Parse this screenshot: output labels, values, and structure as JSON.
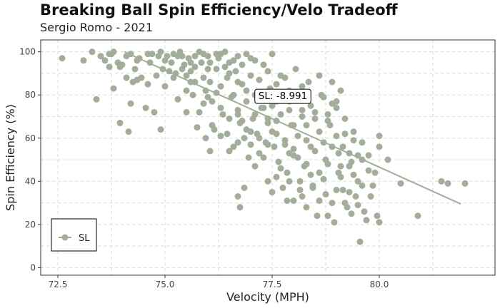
{
  "chart_data": {
    "type": "scatter",
    "title": "Breaking Ball Spin Efficiency/Velo Tradeoff",
    "subtitle": "Sergio Romo - 2021",
    "xlabel": "Velocity (MPH)",
    "ylabel": "Spin Efficiency (%)",
    "xlim": [
      72.1,
      82.7
    ],
    "ylim": [
      -3.5,
      105.5
    ],
    "x_ticks": [
      72.5,
      75.0,
      77.5,
      80.0
    ],
    "x_tick_labels": [
      "72.5",
      "75.0",
      "77.5",
      "80.0"
    ],
    "y_ticks": [
      0,
      20,
      40,
      60,
      80,
      100
    ],
    "y_tick_labels": [
      "0",
      "20",
      "40",
      "60",
      "80",
      "100"
    ],
    "grid": true,
    "legend": {
      "position": "bottom-left",
      "entries": [
        "SL"
      ]
    },
    "point_color": "#A2AE99",
    "trend_color": "#A2AE99",
    "series": [
      {
        "name": "SL",
        "trend": {
          "x": [
            74.05,
            81.9
          ],
          "y": [
            100,
            29.5
          ]
        },
        "points": [
          [
            72.6,
            97
          ],
          [
            73.1,
            96
          ],
          [
            73.3,
            100
          ],
          [
            73.4,
            78
          ],
          [
            73.5,
            98
          ],
          [
            73.6,
            96
          ],
          [
            73.7,
            93
          ],
          [
            73.75,
            99
          ],
          [
            73.8,
            100
          ],
          [
            73.8,
            83
          ],
          [
            73.9,
            95
          ],
          [
            73.95,
            93
          ],
          [
            73.95,
            67
          ],
          [
            74.1,
            98
          ],
          [
            74.1,
            88
          ],
          [
            74.15,
            63
          ],
          [
            74.2,
            76
          ],
          [
            74.25,
            86
          ],
          [
            74.35,
            87
          ],
          [
            74.35,
            96
          ],
          [
            74.45,
            88
          ],
          [
            74.55,
            74
          ],
          [
            74.6,
            99
          ],
          [
            74.65,
            95
          ],
          [
            74.7,
            99
          ],
          [
            74.75,
            72
          ],
          [
            74.9,
            100
          ],
          [
            74.9,
            64
          ],
          [
            74.95,
            92
          ],
          [
            75.0,
            84
          ],
          [
            75.05,
            98
          ],
          [
            75.15,
            95
          ],
          [
            75.25,
            90
          ],
          [
            75.3,
            78
          ],
          [
            75.35,
            100
          ],
          [
            75.4,
            98
          ],
          [
            75.45,
            94
          ],
          [
            75.5,
            89
          ],
          [
            75.5,
            72
          ],
          [
            75.55,
            97
          ],
          [
            75.6,
            91
          ],
          [
            75.6,
            86
          ],
          [
            75.65,
            80
          ],
          [
            75.7,
            98
          ],
          [
            75.75,
            65
          ],
          [
            75.8,
            100
          ],
          [
            75.85,
            95
          ],
          [
            75.9,
            76
          ],
          [
            75.95,
            82
          ],
          [
            75.95,
            60
          ],
          [
            76.0,
            98
          ],
          [
            76.05,
            95
          ],
          [
            76.05,
            86
          ],
          [
            76.05,
            54
          ],
          [
            76.1,
            77
          ],
          [
            76.15,
            64
          ],
          [
            76.2,
            92
          ],
          [
            76.25,
            97
          ],
          [
            76.3,
            84
          ],
          [
            76.35,
            71
          ],
          [
            76.4,
            100
          ],
          [
            76.45,
            88
          ],
          [
            76.45,
            62
          ],
          [
            76.5,
            95
          ],
          [
            76.55,
            79
          ],
          [
            76.6,
            56
          ],
          [
            76.65,
            91
          ],
          [
            76.7,
            98
          ],
          [
            76.7,
            73
          ],
          [
            76.75,
            67
          ],
          [
            76.8,
            85
          ],
          [
            76.85,
            60
          ],
          [
            76.9,
            99
          ],
          [
            76.9,
            77
          ],
          [
            76.95,
            51
          ],
          [
            77.0,
            89
          ],
          [
            77.05,
            69
          ],
          [
            77.1,
            96
          ],
          [
            77.1,
            80
          ],
          [
            77.1,
            47
          ],
          [
            77.15,
            62
          ],
          [
            77.2,
            53
          ],
          [
            77.25,
            74
          ],
          [
            77.3,
            94
          ],
          [
            77.35,
            58
          ],
          [
            77.4,
            67
          ],
          [
            77.4,
            40
          ],
          [
            77.45,
            83
          ],
          [
            77.5,
            99
          ],
          [
            77.5,
            63
          ],
          [
            77.55,
            56
          ],
          [
            77.6,
            77
          ],
          [
            77.65,
            49
          ],
          [
            77.7,
            89
          ],
          [
            77.7,
            71
          ],
          [
            77.75,
            37
          ],
          [
            77.8,
            59
          ],
          [
            77.85,
            44
          ],
          [
            77.9,
            82
          ],
          [
            77.95,
            66
          ],
          [
            78.0,
            52
          ],
          [
            78.0,
            31
          ],
          [
            78.05,
            92
          ],
          [
            78.1,
            61
          ],
          [
            78.15,
            40
          ],
          [
            78.2,
            73
          ],
          [
            78.25,
            47
          ],
          [
            78.3,
            28
          ],
          [
            78.35,
            86
          ],
          [
            78.4,
            56
          ],
          [
            78.45,
            38
          ],
          [
            78.5,
            69
          ],
          [
            78.55,
            24
          ],
          [
            78.6,
            44
          ],
          [
            78.65,
            80
          ],
          [
            78.7,
            58
          ],
          [
            78.75,
            34
          ],
          [
            78.8,
            48
          ],
          [
            78.85,
            66
          ],
          [
            78.9,
            30
          ],
          [
            78.95,
            21
          ],
          [
            79.0,
            77
          ],
          [
            79.05,
            53
          ],
          [
            79.1,
            42
          ],
          [
            79.15,
            36
          ],
          [
            79.2,
            62
          ],
          [
            79.25,
            28
          ],
          [
            79.3,
            47
          ],
          [
            79.35,
            25
          ],
          [
            79.4,
            59
          ],
          [
            79.45,
            33
          ],
          [
            79.5,
            40
          ],
          [
            79.55,
            12
          ],
          [
            79.6,
            50
          ],
          [
            79.65,
            26
          ],
          [
            79.75,
            45
          ],
          [
            79.85,
            38
          ],
          [
            79.95,
            24
          ],
          [
            80.0,
            61
          ],
          [
            80.0,
            21
          ],
          [
            80.2,
            50
          ],
          [
            80.5,
            39
          ],
          [
            80.9,
            24
          ],
          [
            81.45,
            40
          ],
          [
            81.6,
            39
          ],
          [
            82.0,
            39
          ],
          [
            76.3,
            99
          ],
          [
            76.6,
            96
          ],
          [
            76.8,
            94
          ],
          [
            77.0,
            97
          ],
          [
            76.5,
            90
          ],
          [
            76.9,
            82
          ],
          [
            77.2,
            87
          ],
          [
            75.9,
            99
          ],
          [
            76.2,
            99
          ],
          [
            75.7,
            93
          ],
          [
            76.7,
            86
          ],
          [
            77.4,
            91
          ],
          [
            77.6,
            85
          ],
          [
            76.4,
            93
          ],
          [
            75.2,
            99
          ],
          [
            74.85,
            98
          ],
          [
            74.4,
            97
          ],
          [
            73.7,
            99
          ],
          [
            74.0,
            94
          ],
          [
            75.0,
            96
          ],
          [
            75.3,
            98
          ],
          [
            76.0,
            92
          ],
          [
            76.6,
            80
          ],
          [
            77.3,
            79
          ],
          [
            77.8,
            88
          ],
          [
            78.2,
            84
          ],
          [
            78.6,
            89
          ],
          [
            78.9,
            86
          ],
          [
            77.9,
            77
          ],
          [
            78.4,
            75
          ],
          [
            78.7,
            79
          ],
          [
            79.1,
            82
          ],
          [
            78.1,
            79
          ],
          [
            77.1,
            71
          ],
          [
            76.9,
            64
          ],
          [
            77.6,
            68
          ],
          [
            78.3,
            66
          ],
          [
            78.8,
            71
          ],
          [
            79.2,
            69
          ],
          [
            78.0,
            66
          ],
          [
            77.0,
            57
          ],
          [
            77.3,
            51
          ],
          [
            77.7,
            46
          ],
          [
            78.1,
            51
          ],
          [
            78.5,
            54
          ],
          [
            78.9,
            56
          ],
          [
            79.3,
            53
          ],
          [
            79.6,
            58
          ],
          [
            79.75,
            52
          ],
          [
            79.8,
            33
          ],
          [
            79.5,
            29
          ],
          [
            79.0,
            36
          ],
          [
            79.4,
            43
          ],
          [
            79.2,
            30
          ],
          [
            78.7,
            41
          ],
          [
            78.4,
            43
          ],
          [
            78.2,
            33
          ],
          [
            77.9,
            40
          ],
          [
            77.5,
            35
          ],
          [
            78.6,
            31
          ],
          [
            79.3,
            35
          ],
          [
            79.7,
            22
          ],
          [
            78.8,
            24
          ],
          [
            79.9,
            44
          ],
          [
            75.6,
            95
          ],
          [
            75.9,
            88
          ],
          [
            76.2,
            81
          ],
          [
            76.3,
            74
          ],
          [
            76.5,
            69
          ],
          [
            76.1,
            66
          ],
          [
            75.8,
            72
          ],
          [
            75.5,
            82
          ],
          [
            75.2,
            88
          ],
          [
            75.1,
            91
          ],
          [
            74.8,
            89
          ],
          [
            74.6,
            85
          ],
          [
            74.3,
            92
          ],
          [
            74.2,
            99
          ],
          [
            75.4,
            92
          ],
          [
            75.7,
            86
          ],
          [
            76.0,
            79
          ],
          [
            76.3,
            61
          ],
          [
            76.7,
            58
          ],
          [
            77.0,
            63
          ],
          [
            76.5,
            54
          ],
          [
            77.2,
            60
          ],
          [
            77.4,
            69
          ],
          [
            77.6,
            62
          ],
          [
            77.8,
            57
          ],
          [
            78.0,
            55
          ],
          [
            78.3,
            59
          ],
          [
            78.6,
            63
          ],
          [
            79.0,
            61
          ],
          [
            79.4,
            63
          ],
          [
            79.1,
            47
          ],
          [
            78.3,
            48
          ],
          [
            77.9,
            53
          ],
          [
            77.4,
            57
          ],
          [
            76.8,
            68
          ],
          [
            76.7,
            71
          ],
          [
            77.3,
            74
          ],
          [
            77.5,
            75
          ],
          [
            77.7,
            80
          ],
          [
            77.9,
            73
          ],
          [
            78.2,
            70
          ],
          [
            78.5,
            72
          ],
          [
            78.8,
            68
          ],
          [
            79.15,
            56
          ],
          [
            79.35,
            49
          ],
          [
            79.6,
            38
          ],
          [
            79.05,
            44
          ],
          [
            78.75,
            50
          ],
          [
            78.45,
            37
          ],
          [
            78.15,
            36
          ],
          [
            77.85,
            31
          ],
          [
            76.85,
            37
          ],
          [
            76.7,
            33
          ],
          [
            76.75,
            28
          ],
          [
            77.6,
            42
          ],
          [
            78.9,
            76
          ],
          [
            79.0,
            74
          ],
          [
            79.5,
            52
          ],
          [
            80.0,
            56
          ]
        ]
      }
    ],
    "annotations": [
      {
        "text": "SL: -8.991",
        "x": 77.75,
        "y": 79.7
      }
    ]
  }
}
